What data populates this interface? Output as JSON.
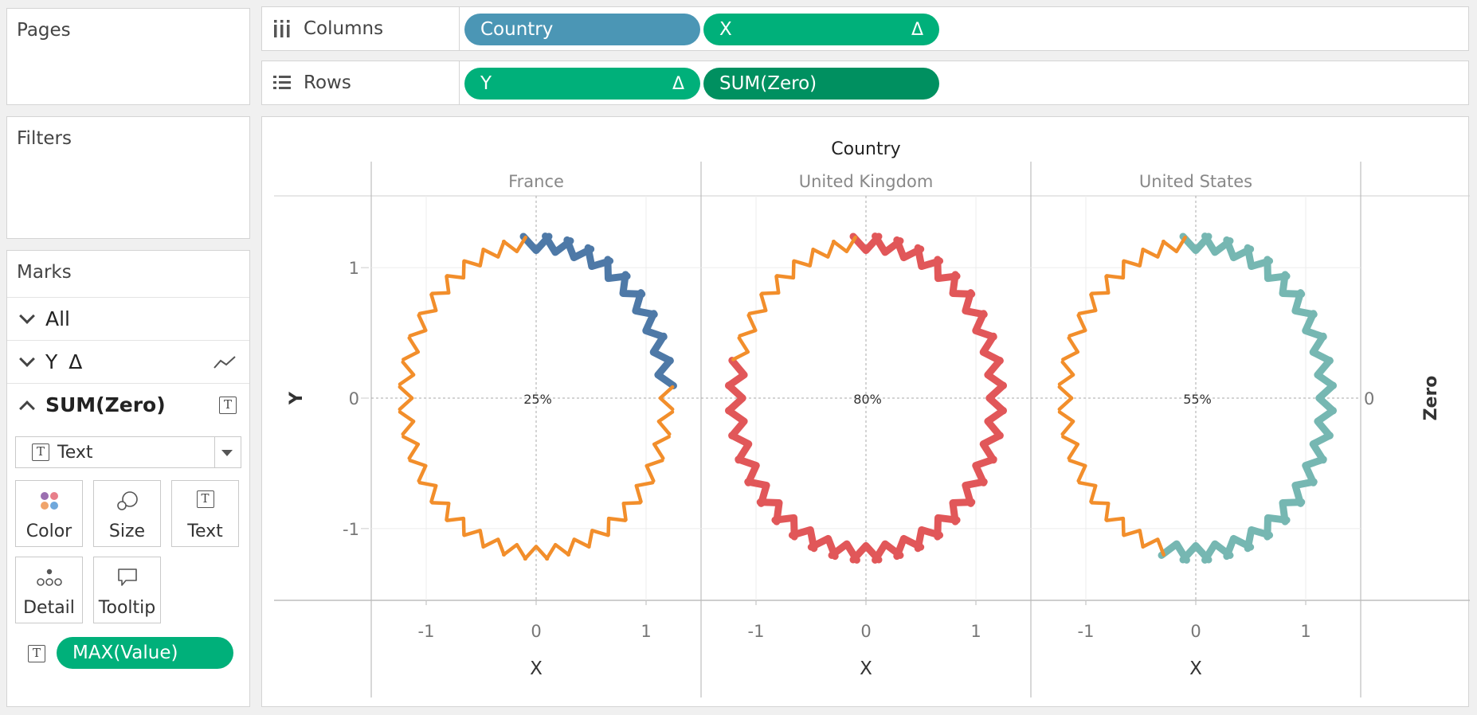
{
  "pages": {
    "title": "Pages"
  },
  "filters": {
    "title": "Filters"
  },
  "marks": {
    "title": "Marks",
    "layers": [
      {
        "label": "All",
        "expanded": false
      },
      {
        "label": "Y",
        "delta": "Δ",
        "expanded": false,
        "mark_icon": "line-icon"
      },
      {
        "label": "SUM(Zero)",
        "expanded": true,
        "mark_icon": "text-icon"
      }
    ],
    "mark_type": "Text",
    "cards": [
      "Color",
      "Size",
      "Text",
      "Detail",
      "Tooltip"
    ],
    "field_pill": "MAX(Value)"
  },
  "shelves": {
    "columns": {
      "label": "Columns",
      "pills": [
        {
          "text": "Country",
          "delta": "",
          "color": "#4b96b5"
        },
        {
          "text": "X",
          "delta": "Δ",
          "color": "#00b07a"
        }
      ]
    },
    "rows": {
      "label": "Rows",
      "pills": [
        {
          "text": "Y",
          "delta": "Δ",
          "color": "#00b07a"
        },
        {
          "text": "SUM(Zero)",
          "delta": "",
          "color": "#009060"
        }
      ]
    }
  },
  "chart_data": {
    "type": "scatter",
    "header_title": "Country",
    "ylabel": "Y",
    "xlabel": "X",
    "right_axis_label": "Zero",
    "right_axis_tick": "0",
    "xlim": [
      -1.5,
      1.5
    ],
    "ylim": [
      -1.55,
      1.55
    ],
    "x_ticks": [
      -1,
      0,
      1
    ],
    "y_ticks": [
      1,
      0,
      -1
    ],
    "rest_color": "#f28e2b",
    "panels": [
      {
        "country": "France",
        "label": "25%",
        "value": 0.25,
        "color": "#4e79a7"
      },
      {
        "country": "United Kingdom",
        "label": "80%",
        "value": 0.8,
        "color": "#e15759"
      },
      {
        "country": "United States",
        "label": "55%",
        "value": 0.55,
        "color": "#76b7b2"
      }
    ]
  }
}
